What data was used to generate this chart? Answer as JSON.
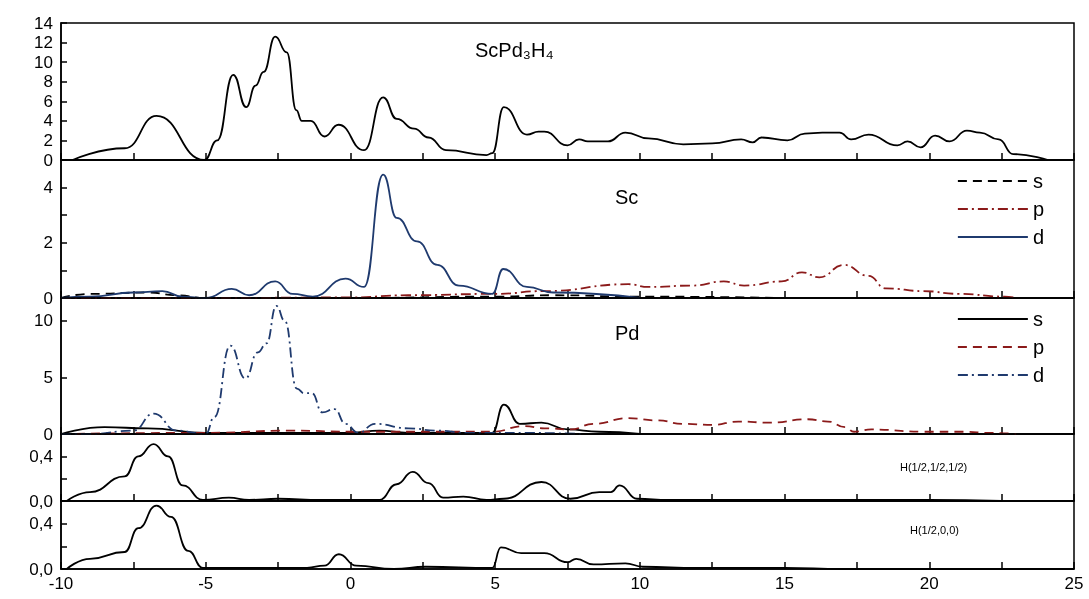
{
  "chart_data": [
    {
      "type": "line",
      "title": "ScPd₃H₄",
      "xlim": [
        -10,
        25
      ],
      "ylim": [
        0,
        14
      ],
      "marker": "none",
      "grid": false,
      "legend": false,
      "tick_labels": "y",
      "xticks": [
        -10,
        {
          "value": -7.5,
          "label": null
        },
        -5,
        {
          "value": -2.5,
          "label": null
        },
        0,
        {
          "value": 2.5,
          "label": null
        },
        5,
        {
          "value": 7.5,
          "label": null
        },
        10,
        {
          "value": 12.5,
          "label": null
        },
        15,
        {
          "value": 17.5,
          "label": null
        },
        20,
        {
          "value": 22.5,
          "label": null
        },
        25
      ],
      "yticks": [
        0,
        2,
        4,
        6,
        8,
        10,
        12,
        14
      ],
      "series": [
        {
          "color": "#000000",
          "line_style": "solid",
          "x": [
            -9.6,
            -7.8,
            -6.7,
            -5.05,
            -4.6,
            -4.05,
            -3.6,
            -3.28,
            -3.0,
            -2.6,
            -2.2,
            -1.87,
            -1.68,
            -1.37,
            -0.9,
            -0.41,
            0.47,
            1.13,
            1.6,
            2.2,
            2.7,
            3.3,
            4.7,
            4.9,
            5.3,
            6.1,
            6.5,
            6.7,
            7.5,
            7.9,
            8.2,
            8.9,
            9.5,
            10.3,
            11.5,
            12.5,
            13.5,
            13.9,
            14.2,
            15.1,
            15.7,
            16.3,
            16.9,
            17.3,
            17.9,
            18.9,
            19.25,
            19.7,
            20.2,
            20.7,
            21.3,
            21.75,
            22.4,
            22.9,
            24.1
          ],
          "values": [
            0,
            1.2,
            4.5,
            0,
            2,
            8.7,
            5.4,
            7.6,
            9.0,
            12.6,
            11.0,
            5.1,
            4.0,
            4.0,
            2.4,
            3.6,
            1.0,
            6.4,
            4.2,
            3.2,
            2.3,
            1.0,
            0.5,
            0.7,
            5.4,
            2.6,
            2.9,
            2.9,
            1.5,
            2.1,
            1.9,
            1.9,
            2.8,
            2.2,
            1.6,
            1.7,
            2.1,
            1.8,
            2.3,
            2.0,
            2.7,
            2.8,
            2.8,
            2.1,
            2.6,
            1.5,
            1.9,
            1.3,
            2.5,
            1.9,
            3.0,
            2.8,
            2.1,
            0.6,
            0
          ]
        }
      ]
    },
    {
      "type": "line",
      "title": "Sc",
      "xlim": [
        -10,
        25
      ],
      "ylim": [
        0,
        5
      ],
      "marker": "none",
      "grid": false,
      "legend": "top right",
      "tick_labels": "y",
      "xticks": [
        -10,
        {
          "value": -7.5,
          "label": null
        },
        -5,
        {
          "value": -2.5,
          "label": null
        },
        0,
        {
          "value": 2.5,
          "label": null
        },
        5,
        {
          "value": 7.5,
          "label": null
        },
        10,
        {
          "value": 12.5,
          "label": null
        },
        15,
        {
          "value": 17.5,
          "label": null
        },
        20,
        {
          "value": 22.5,
          "label": null
        },
        25
      ],
      "yticks": [
        0,
        {
          "value": 1,
          "label": null
        },
        2,
        {
          "value": 3,
          "label": null
        },
        4
      ],
      "series": [
        {
          "name": "s",
          "color": "#000000",
          "line_style": "dashed",
          "x": [
            -10,
            -9,
            -7,
            -6,
            -5,
            0,
            5,
            7,
            10,
            15
          ],
          "values": [
            0,
            0.15,
            0.2,
            0.1,
            0,
            0,
            0.05,
            0.1,
            0.05,
            0
          ]
        },
        {
          "name": "p",
          "color": "#8b1a1a",
          "line_style": "dashdot",
          "x": [
            -10,
            -5,
            0,
            2,
            5,
            6.7,
            9.6,
            10.3,
            11.8,
            12.9,
            13.6,
            14.9,
            15.6,
            16.2,
            17.05,
            17.9,
            18.5,
            19.8,
            21,
            22.6,
            23
          ],
          "values": [
            0,
            0,
            0.02,
            0.1,
            0.15,
            0.25,
            0.5,
            0.4,
            0.45,
            0.6,
            0.45,
            0.6,
            0.93,
            0.75,
            1.2,
            0.8,
            0.35,
            0.25,
            0.15,
            0.05,
            0
          ]
        },
        {
          "name": "d",
          "color": "#1f3a6e",
          "line_style": "solid",
          "x": [
            -10,
            -9,
            -7.5,
            -6.5,
            -5.8,
            -5,
            -4.1,
            -3.5,
            -2.6,
            -2,
            -1.3,
            -0.17,
            0.47,
            1.13,
            1.6,
            2.3,
            3.0,
            3.75,
            4.9,
            5.28,
            6.1,
            7,
            10
          ],
          "values": [
            0,
            0.05,
            0.2,
            0.25,
            0.05,
            0,
            0.33,
            0.1,
            0.6,
            0.15,
            0.05,
            0.7,
            0.4,
            4.47,
            2.9,
            2.05,
            1.2,
            0.45,
            0.15,
            1.05,
            0.4,
            0.2,
            0
          ]
        }
      ]
    },
    {
      "type": "line",
      "title": "Pd",
      "xlim": [
        -10,
        25
      ],
      "ylim": [
        0,
        12
      ],
      "marker": "none",
      "grid": false,
      "legend": "top right",
      "tick_labels": "y",
      "xticks": [
        -10,
        {
          "value": -7.5,
          "label": null
        },
        -5,
        {
          "value": -2.5,
          "label": null
        },
        0,
        {
          "value": 2.5,
          "label": null
        },
        5,
        {
          "value": 7.5,
          "label": null
        },
        10,
        {
          "value": 12.5,
          "label": null
        },
        15,
        {
          "value": 17.5,
          "label": null
        },
        20,
        {
          "value": 22.5,
          "label": null
        },
        25
      ],
      "yticks": [
        0,
        5,
        10
      ],
      "series": [
        {
          "name": "s",
          "color": "#000000",
          "line_style": "solid",
          "x": [
            -10,
            -8.5,
            -7,
            -5,
            0,
            1,
            2,
            4.9,
            5.3,
            5.85,
            6.6,
            7.5,
            8.6,
            10
          ],
          "values": [
            0,
            0.6,
            0.5,
            0.1,
            0.1,
            0.3,
            0.1,
            0.1,
            2.6,
            0.9,
            1.0,
            0.4,
            0.2,
            0
          ]
        },
        {
          "name": "p",
          "color": "#8b1a1a",
          "line_style": "dashed",
          "x": [
            -10,
            -5,
            -2,
            0,
            4.9,
            6,
            6.7,
            7.6,
            8.4,
            9.6,
            10.6,
            11.5,
            12.5,
            13.4,
            14.5,
            15.8,
            16.5,
            17.1,
            17.4,
            18,
            19.8,
            21.2,
            22.1,
            23
          ],
          "values": [
            0,
            0.1,
            0.3,
            0.2,
            0.2,
            0.7,
            0.5,
            0.4,
            0.9,
            1.4,
            1.2,
            0.9,
            0.8,
            1.1,
            1.0,
            1.3,
            1.1,
            0.6,
            0.2,
            0.4,
            0.2,
            0.2,
            0.1,
            0
          ]
        },
        {
          "name": "d",
          "color": "#1f3a6e",
          "line_style": "dashdot",
          "x": [
            -10,
            -9,
            -7.5,
            -6.8,
            -6,
            -5,
            -4.7,
            -4.15,
            -3.63,
            -3.2,
            -2.9,
            -2.56,
            -2.27,
            -1.85,
            -1.6,
            -1.33,
            -0.97,
            -0.55,
            -0.17,
            0.27,
            0.85,
            2,
            3,
            4,
            5,
            6,
            8
          ],
          "values": [
            0,
            0,
            0.3,
            1.8,
            0.3,
            0,
            1.5,
            7.8,
            4.9,
            7.2,
            8.0,
            11.3,
            10.0,
            4.0,
            3.6,
            3.6,
            1.9,
            2.2,
            0.9,
            0.1,
            0.9,
            0.5,
            0.3,
            0.1,
            0.1,
            0.1,
            0
          ]
        }
      ]
    },
    {
      "type": "line",
      "title": "H(1/2,1/2,1/2)",
      "xlim": [
        -10,
        25
      ],
      "ylim": [
        0,
        0.6
      ],
      "marker": "none",
      "grid": false,
      "legend": false,
      "tick_labels": "y",
      "xticks": [
        -10,
        {
          "value": -7.5,
          "label": null
        },
        -5,
        {
          "value": -2.5,
          "label": null
        },
        0,
        {
          "value": 2.5,
          "label": null
        },
        5,
        {
          "value": 7.5,
          "label": null
        },
        10,
        {
          "value": 12.5,
          "label": null
        },
        15,
        {
          "value": 17.5,
          "label": null
        },
        20,
        {
          "value": 22.5,
          "label": null
        },
        25
      ],
      "yticks": [
        {
          "value": 0,
          "label": "0,0"
        },
        {
          "value": 0.2,
          "label": null
        },
        {
          "value": 0.4,
          "label": "0,4"
        }
      ],
      "series": [
        {
          "color": "#000000",
          "line_style": "solid",
          "x": [
            -9.8,
            -9.0,
            -7.8,
            -7.33,
            -6.8,
            -6.3,
            -5.8,
            -5.1,
            -4.2,
            -3.5,
            -2.5,
            -1,
            0,
            1,
            1.6,
            2.15,
            2.7,
            3.2,
            3.9,
            4.7,
            5.3,
            6.6,
            7.6,
            8.6,
            9.0,
            9.3,
            9.9,
            11,
            15,
            20,
            22.5
          ],
          "values": [
            0,
            0.08,
            0.22,
            0.4,
            0.51,
            0.4,
            0.14,
            0.01,
            0.03,
            0.01,
            0.02,
            0.01,
            0.01,
            0.01,
            0.15,
            0.26,
            0.16,
            0.03,
            0.04,
            0.01,
            0.02,
            0.17,
            0.02,
            0.08,
            0.08,
            0.14,
            0.02,
            0.01,
            0.01,
            0.01,
            0
          ]
        }
      ]
    },
    {
      "type": "line",
      "title": "H(1/2,0,0)",
      "xlim": [
        -10,
        25
      ],
      "ylim": [
        0,
        0.6
      ],
      "marker": "none",
      "grid": false,
      "legend": false,
      "xticks": [
        -10,
        {
          "value": -7.5,
          "label": null
        },
        -5,
        {
          "value": -2.5,
          "label": null
        },
        0,
        {
          "value": 2.5,
          "label": null
        },
        5,
        {
          "value": 7.5,
          "label": null
        },
        10,
        {
          "value": 12.5,
          "label": null
        },
        15,
        {
          "value": 17.5,
          "label": null
        },
        20,
        {
          "value": 22.5,
          "label": null
        },
        25
      ],
      "yticks": [
        {
          "value": 0,
          "label": "0,0"
        },
        {
          "value": 0.2,
          "label": null
        },
        {
          "value": 0.4,
          "label": "0,4"
        }
      ],
      "series": [
        {
          "color": "#000000",
          "line_style": "solid",
          "x": [
            -9.8,
            -9,
            -7.8,
            -7.33,
            -6.7,
            -6.2,
            -5.6,
            -5.1,
            -3,
            -1.5,
            -0.9,
            -0.4,
            0.2,
            1.5,
            2.6,
            4.9,
            5.2,
            5.9,
            6.7,
            7.5,
            7.8,
            8.4,
            9.5,
            10.1,
            12,
            15,
            17,
            25
          ],
          "values": [
            0,
            0.09,
            0.15,
            0.36,
            0.56,
            0.46,
            0.16,
            0.01,
            0.01,
            0.01,
            0.03,
            0.13,
            0.03,
            0,
            0.02,
            0.01,
            0.19,
            0.14,
            0.14,
            0.06,
            0.09,
            0.04,
            0.05,
            0.02,
            0.01,
            0.01,
            0,
            0
          ]
        }
      ]
    }
  ]
}
